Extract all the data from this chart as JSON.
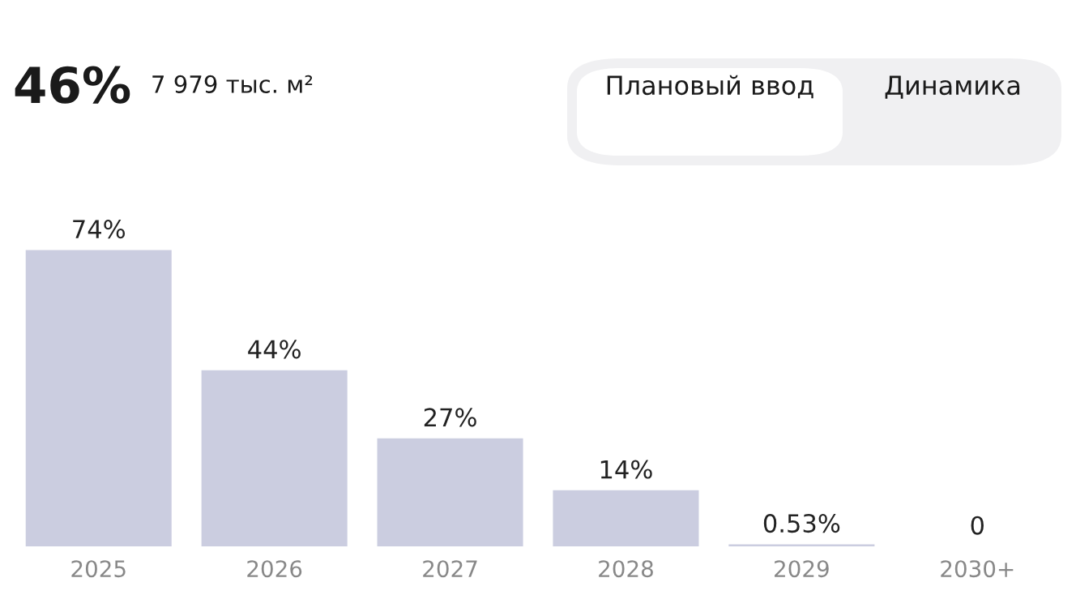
{
  "chart_data": {
    "type": "bar",
    "title": "46%",
    "subtitle": "7 979 тыс. м²",
    "annotations": [
      "Плановый ввод",
      "Динамика"
    ],
    "categories": [
      "2025",
      "2026",
      "2027",
      "2028",
      "2029",
      "2030+"
    ],
    "values": [
      74,
      44,
      27,
      14,
      0.53,
      0
    ],
    "value_labels": [
      "74%",
      "44%",
      "27%",
      "14%",
      "0.53%",
      "0"
    ],
    "color": "#cbcde0",
    "grid": false,
    "legend": false
  }
}
